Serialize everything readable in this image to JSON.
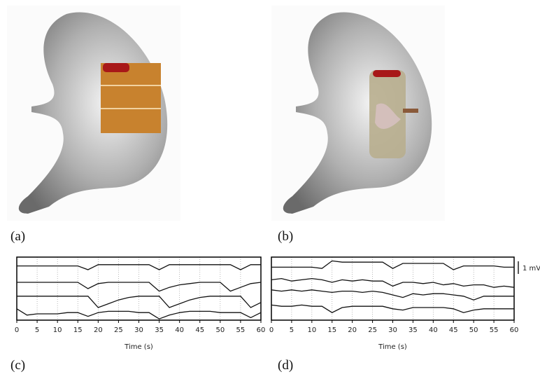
{
  "panels": [
    {
      "label": "(a)"
    },
    {
      "label": "(b)"
    }
  ],
  "chart_data": [
    {
      "type": "line",
      "panel_label": "(c)",
      "xlabel": "Time (s)",
      "x": [
        0,
        2.5,
        5,
        7.5,
        10,
        12.5,
        15,
        17.5,
        20,
        22.5,
        25,
        27.5,
        30,
        32.5,
        35,
        37.5,
        40,
        42.5,
        45,
        47.5,
        50,
        52.5,
        55,
        57.5,
        60
      ],
      "xlim": [
        0,
        60
      ],
      "xticks": [
        0,
        5,
        10,
        15,
        20,
        25,
        30,
        35,
        40,
        45,
        50,
        55,
        60
      ],
      "ylim": [
        0,
        5
      ],
      "grid": true,
      "series": [
        {
          "color": "#111",
          "values": [
            4.3,
            4.3,
            4.3,
            4.3,
            4.3,
            4.3,
            4.3,
            4.0,
            4.4,
            4.4,
            4.4,
            4.4,
            4.4,
            4.4,
            4.0,
            4.4,
            4.4,
            4.4,
            4.4,
            4.4,
            4.4,
            4.4,
            4.0,
            4.4,
            4.4
          ]
        },
        {
          "color": "#111",
          "values": [
            3.0,
            3.0,
            3.0,
            3.0,
            3.0,
            3.0,
            3.0,
            2.5,
            2.9,
            3.0,
            3.0,
            3.0,
            3.0,
            3.0,
            2.3,
            2.6,
            2.8,
            2.9,
            3.0,
            3.0,
            3.0,
            2.3,
            2.6,
            2.9,
            3.0
          ]
        },
        {
          "color": "#111",
          "values": [
            1.9,
            1.9,
            1.9,
            1.9,
            1.9,
            1.9,
            1.9,
            1.9,
            1.0,
            1.3,
            1.6,
            1.8,
            1.9,
            1.9,
            1.9,
            1.0,
            1.3,
            1.6,
            1.8,
            1.9,
            1.9,
            1.9,
            1.9,
            1.0,
            1.4
          ]
        },
        {
          "color": "#111",
          "values": [
            0.9,
            0.4,
            0.5,
            0.5,
            0.5,
            0.6,
            0.6,
            0.3,
            0.6,
            0.7,
            0.7,
            0.7,
            0.6,
            0.6,
            0.1,
            0.4,
            0.6,
            0.7,
            0.7,
            0.7,
            0.6,
            0.6,
            0.6,
            0.2,
            0.6
          ]
        }
      ]
    },
    {
      "type": "line",
      "panel_label": "(d)",
      "xlabel": "Time (s)",
      "x": [
        0,
        2.5,
        5,
        7.5,
        10,
        12.5,
        15,
        17.5,
        20,
        22.5,
        25,
        27.5,
        30,
        32.5,
        35,
        37.5,
        40,
        42.5,
        45,
        47.5,
        50,
        52.5,
        55,
        57.5,
        60
      ],
      "xlim": [
        0,
        60
      ],
      "xticks": [
        0,
        5,
        10,
        15,
        20,
        25,
        30,
        35,
        40,
        45,
        50,
        55,
        60
      ],
      "ylim": [
        0,
        5
      ],
      "grid": true,
      "scale_bar": {
        "value": 1,
        "label": "1 mV"
      },
      "series": [
        {
          "color": "#111",
          "values": [
            4.2,
            4.2,
            4.2,
            4.2,
            4.2,
            4.1,
            4.7,
            4.6,
            4.6,
            4.6,
            4.6,
            4.6,
            4.1,
            4.5,
            4.5,
            4.5,
            4.5,
            4.5,
            4.0,
            4.3,
            4.3,
            4.3,
            4.3,
            4.2,
            4.2
          ]
        },
        {
          "color": "#111",
          "values": [
            3.2,
            3.3,
            3.1,
            3.2,
            3.3,
            3.2,
            3.0,
            3.2,
            3.1,
            3.2,
            3.1,
            3.1,
            2.7,
            3.0,
            3.0,
            2.9,
            3.0,
            2.8,
            2.9,
            2.7,
            2.8,
            2.8,
            2.6,
            2.7,
            2.6
          ]
        },
        {
          "color": "#111",
          "values": [
            2.4,
            2.3,
            2.4,
            2.3,
            2.4,
            2.3,
            2.2,
            2.3,
            2.3,
            2.2,
            2.3,
            2.2,
            2.0,
            1.8,
            2.1,
            2.0,
            2.1,
            2.1,
            2.0,
            1.9,
            1.6,
            1.9,
            1.9,
            1.9,
            1.9
          ]
        },
        {
          "color": "#111",
          "values": [
            1.2,
            1.1,
            1.1,
            1.2,
            1.1,
            1.1,
            0.6,
            1.0,
            1.1,
            1.1,
            1.1,
            1.1,
            0.9,
            0.8,
            1.0,
            1.0,
            1.0,
            1.0,
            0.9,
            0.6,
            0.8,
            0.9,
            0.9,
            0.9,
            0.9
          ]
        }
      ]
    }
  ]
}
